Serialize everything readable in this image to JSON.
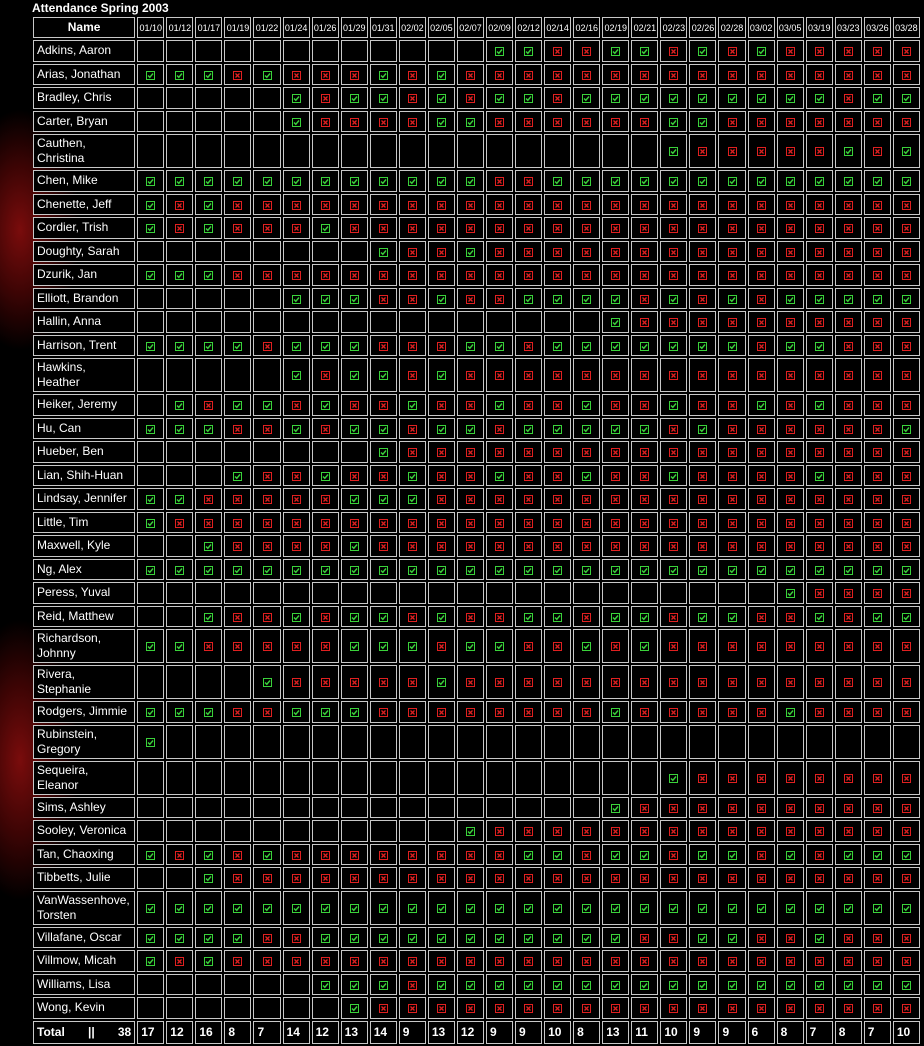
{
  "title": "Attendance Spring 2003",
  "table": {
    "header": {
      "name": "Name",
      "dates": [
        "01/10",
        "01/12",
        "01/17",
        "01/19",
        "01/22",
        "01/24",
        "01/26",
        "01/29",
        "01/31",
        "02/02",
        "02/05",
        "02/07",
        "02/09",
        "02/12",
        "02/14",
        "02/16",
        "02/19",
        "02/21",
        "02/23",
        "02/26",
        "02/28",
        "03/02",
        "03/05",
        "03/19",
        "03/23",
        "03/26",
        "03/28"
      ]
    },
    "rows": [
      {
        "name": "Adkins, Aaron",
        "marks": "............GGRRGGRGRGRRRRR"
      },
      {
        "name": "Arias, Jonathan",
        "marks": "GGGRGRRRGRGRRRRRRRRRRRRRRRR"
      },
      {
        "name": "Bradley, Chris",
        "marks": ".....GRGGRGRGGRGGGGGGGGGRGG"
      },
      {
        "name": "Carter, Bryan",
        "marks": ".....GRRRRGGRRRRRRGGRRRRRRR"
      },
      {
        "name": "Cauthen, Christina",
        "marks": "..................GRRRRRGRG"
      },
      {
        "name": "Chen, Mike",
        "marks": "GGGGGGGGGGGGRRGGGGGGGGGGGGG"
      },
      {
        "name": "Chenette, Jeff",
        "marks": "GRGRRRRRRRRRRRRRRRRRRRRRRRR"
      },
      {
        "name": "Cordier, Trish",
        "marks": "GRGRRRGRRRRRRRRRRRRRRRRRRRR"
      },
      {
        "name": "Doughty, Sarah",
        "marks": "........GRRGRRRRRRRRRRRRRRR"
      },
      {
        "name": "Dzurik, Jan",
        "marks": "GGGRRRRRRRRRRRRRRRRRRRRRRRR"
      },
      {
        "name": "Elliott, Brandon",
        "marks": ".....GGGRRGRRGGGGRGRGRGGGGG"
      },
      {
        "name": "Hallin, Anna",
        "marks": "................GRRRRRRRRRR"
      },
      {
        "name": "Harrison, Trent",
        "marks": "GGGGRGGGRRRGGRGGGGGGGRGGRRR"
      },
      {
        "name": "Hawkins, Heather",
        "marks": ".....GRGGRGRRRRRRRRRRRRRRRR"
      },
      {
        "name": "Heiker, Jeremy",
        "marks": ".GRGGRGRRGRRGRRGRRGRRGRGRRR"
      },
      {
        "name": "Hu, Can",
        "marks": "GGGRRGRGGRGGRGGGGGRGRRRRRRG"
      },
      {
        "name": "Hueber, Ben",
        "marks": "........GRRRRRRRRRRRRRRRRRR"
      },
      {
        "name": "Lian, Shih-Huan",
        "marks": "...GRRGRRGRRGRRGRRGRRRRGRRR"
      },
      {
        "name": "Lindsay, Jennifer",
        "marks": "GGRRRRRGGGRRRRRRRRRRRRRRRRR"
      },
      {
        "name": "Little, Tim",
        "marks": "GRRRRRRRRRRRRRRRRRRRRRRRRRR"
      },
      {
        "name": "Maxwell, Kyle",
        "marks": "..GRRRRGRRRRRRRRRRRRRRRRRRR"
      },
      {
        "name": "Ng, Alex",
        "marks": "GGGGGGGGGGGGGGGGGGGGGGGGGGG"
      },
      {
        "name": "Peress, Yuval",
        "marks": "......................GRRRR"
      },
      {
        "name": "Reid, Matthew",
        "marks": "..GRRGRGGRGRRGGRGGRGGRRGRGG"
      },
      {
        "name": "Richardson, Johnny",
        "marks": "GGRRRRRGGGRGGRRGRGRRRRRRRRR"
      },
      {
        "name": "Rivera, Stephanie",
        "marks": "....GRRRRRGRRRRRRRRRRRRRRRR"
      },
      {
        "name": "Rodgers, Jimmie",
        "marks": "GGGRRGGGRRRRRRRRGRRRRRGRRRR"
      },
      {
        "name": "Rubinstein, Gregory",
        "marks": "G.........................."
      },
      {
        "name": "Sequeira, Eleanor",
        "marks": "..................GRRRRRRRR"
      },
      {
        "name": "Sims, Ashley",
        "marks": "................GRRRRRRRRRR"
      },
      {
        "name": "Sooley, Veronica",
        "marks": "...........GRRRRRRRRRRRRRRR"
      },
      {
        "name": "Tan, Chaoxing",
        "marks": "GRGRGRRRRRRRRGGRGGRGGRGRGGG"
      },
      {
        "name": "Tibbetts, Julie",
        "marks": "..GRRRRRRRRRRRRRRRRRRRRRRRR"
      },
      {
        "name": "VanWassenhove, Torsten",
        "marks": "GGGGGGGGGGGGGGGGGGGGGGGGGGG"
      },
      {
        "name": "Villafane, Oscar",
        "marks": "GGGGRRGGGGGGGGGGGRRGGRRGRRR"
      },
      {
        "name": "Villmow, Micah",
        "marks": "GRGRRRRRRRRRRRRRRRRRRRRRRRR"
      },
      {
        "name": "Williams, Lisa",
        "marks": "......GGGRGGGGGGGGGGGGGGGGG"
      },
      {
        "name": "Wong, Kevin",
        "marks": ".......GRRRRRRRRRRRRRRRRRRR"
      }
    ],
    "total": {
      "label": "Total",
      "separator": "||",
      "count": 38,
      "values": [
        17,
        12,
        16,
        8,
        7,
        14,
        12,
        13,
        14,
        9,
        13,
        12,
        9,
        9,
        10,
        8,
        13,
        11,
        10,
        9,
        9,
        6,
        8,
        7,
        8,
        7,
        10
      ]
    }
  }
}
